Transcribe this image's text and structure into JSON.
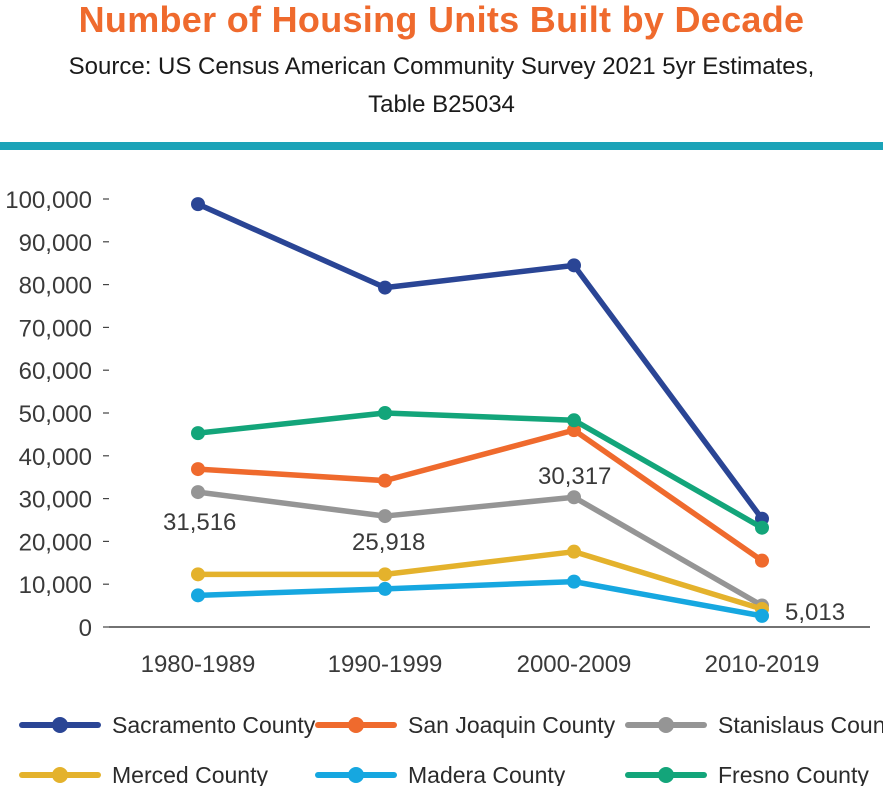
{
  "colors": {
    "title": "#ef6a2d",
    "rule": "#1ba3b8",
    "axis": "#444444"
  },
  "chart_data": {
    "type": "line",
    "title": "Number of Housing Units Built by Decade",
    "subtitle_line1": "Source: US Census American Community Survey 2021 5yr Estimates,",
    "subtitle_line2": "Table B25034",
    "categories": [
      "1980-1989",
      "1990-1999",
      "2000-2009",
      "2010-2019"
    ],
    "ylim": [
      0,
      100000
    ],
    "yticks": [
      0,
      10000,
      20000,
      30000,
      40000,
      50000,
      60000,
      70000,
      80000,
      90000,
      100000
    ],
    "ytick_labels": [
      "0",
      "10,000",
      "20,000",
      "30,000",
      "40,000",
      "50,000",
      "60,000",
      "70,000",
      "80,000",
      "90,000",
      "100,000"
    ],
    "series": [
      {
        "name": "Sacramento County",
        "color": "#2a4595",
        "values": [
          98800,
          79300,
          84500,
          25300
        ]
      },
      {
        "name": "San Joaquin County",
        "color": "#ef6a2d",
        "values": [
          36900,
          34200,
          46000,
          15500
        ]
      },
      {
        "name": "Stanislaus County",
        "color": "#959595",
        "values": [
          31516,
          25918,
          30317,
          5013
        ]
      },
      {
        "name": "Merced County",
        "color": "#e4b22c",
        "values": [
          12300,
          12300,
          17600,
          4200
        ]
      },
      {
        "name": "Madera County",
        "color": "#16a7e0",
        "values": [
          7400,
          8900,
          10600,
          2600
        ]
      },
      {
        "name": "Fresno County",
        "color": "#13a57a",
        "values": [
          45300,
          50000,
          48300,
          23200
        ]
      }
    ],
    "data_labels": [
      "31,516",
      "25,918",
      "30,317",
      "5,013"
    ]
  }
}
